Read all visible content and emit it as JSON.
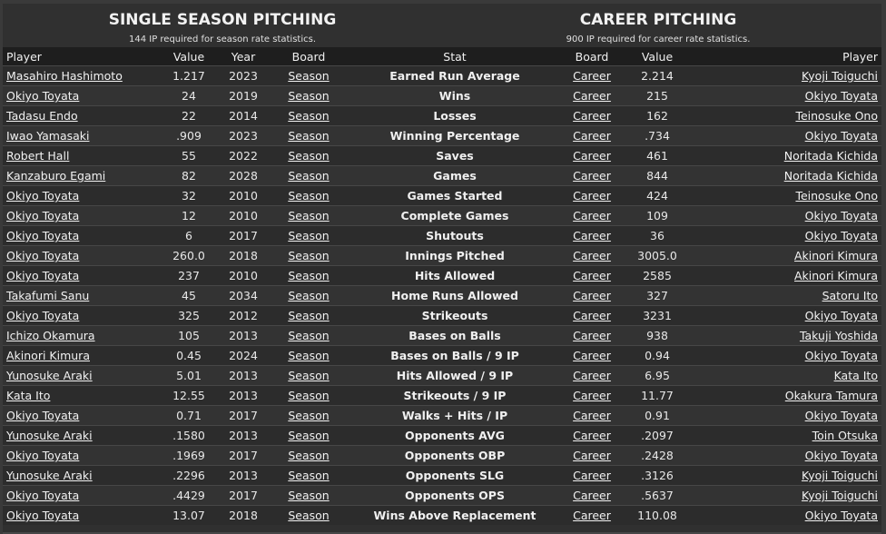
{
  "single": {
    "title": "SINGLE SEASON PITCHING",
    "note": "144 IP required for season rate statistics."
  },
  "career": {
    "title": "CAREER PITCHING",
    "note": "900 IP required for career rate statistics."
  },
  "columns": {
    "player_left": "Player",
    "value_left": "Value",
    "year": "Year",
    "board_left": "Board",
    "stat": "Stat",
    "board_right": "Board",
    "value_right": "Value",
    "player_right": "Player"
  },
  "rows": [
    {
      "sp": "Masahiro Hashimoto",
      "sv": "1.217",
      "yr": "2023",
      "sb": "Season",
      "stat": "Earned Run Average",
      "cb": "Career",
      "cv": "2.214",
      "cp": "Kyoji Toiguchi"
    },
    {
      "sp": "Okiyo Toyata",
      "sv": "24",
      "yr": "2019",
      "sb": "Season",
      "stat": "Wins",
      "cb": "Career",
      "cv": "215",
      "cp": "Okiyo Toyata"
    },
    {
      "sp": "Tadasu Endo",
      "sv": "22",
      "yr": "2014",
      "sb": "Season",
      "stat": "Losses",
      "cb": "Career",
      "cv": "162",
      "cp": "Teinosuke Ono"
    },
    {
      "sp": "Iwao Yamasaki",
      "sv": ".909",
      "yr": "2023",
      "sb": "Season",
      "stat": "Winning Percentage",
      "cb": "Career",
      "cv": ".734",
      "cp": "Okiyo Toyata"
    },
    {
      "sp": "Robert Hall",
      "sv": "55",
      "yr": "2022",
      "sb": "Season",
      "stat": "Saves",
      "cb": "Career",
      "cv": "461",
      "cp": "Noritada Kichida"
    },
    {
      "sp": "Kanzaburo Egami",
      "sv": "82",
      "yr": "2028",
      "sb": "Season",
      "stat": "Games",
      "cb": "Career",
      "cv": "844",
      "cp": "Noritada Kichida"
    },
    {
      "sp": "Okiyo Toyata",
      "sv": "32",
      "yr": "2010",
      "sb": "Season",
      "stat": "Games Started",
      "cb": "Career",
      "cv": "424",
      "cp": "Teinosuke Ono"
    },
    {
      "sp": "Okiyo Toyata",
      "sv": "12",
      "yr": "2010",
      "sb": "Season",
      "stat": "Complete Games",
      "cb": "Career",
      "cv": "109",
      "cp": "Okiyo Toyata"
    },
    {
      "sp": "Okiyo Toyata",
      "sv": "6",
      "yr": "2017",
      "sb": "Season",
      "stat": "Shutouts",
      "cb": "Career",
      "cv": "36",
      "cp": "Okiyo Toyata"
    },
    {
      "sp": "Okiyo Toyata",
      "sv": "260.0",
      "yr": "2018",
      "sb": "Season",
      "stat": "Innings Pitched",
      "cb": "Career",
      "cv": "3005.0",
      "cp": "Akinori Kimura"
    },
    {
      "sp": "Okiyo Toyata",
      "sv": "237",
      "yr": "2010",
      "sb": "Season",
      "stat": "Hits Allowed",
      "cb": "Career",
      "cv": "2585",
      "cp": "Akinori Kimura"
    },
    {
      "sp": "Takafumi Sanu",
      "sv": "45",
      "yr": "2034",
      "sb": "Season",
      "stat": "Home Runs Allowed",
      "cb": "Career",
      "cv": "327",
      "cp": "Satoru Ito"
    },
    {
      "sp": "Okiyo Toyata",
      "sv": "325",
      "yr": "2012",
      "sb": "Season",
      "stat": "Strikeouts",
      "cb": "Career",
      "cv": "3231",
      "cp": "Okiyo Toyata"
    },
    {
      "sp": "Ichizo Okamura",
      "sv": "105",
      "yr": "2013",
      "sb": "Season",
      "stat": "Bases on Balls",
      "cb": "Career",
      "cv": "938",
      "cp": "Takuji Yoshida"
    },
    {
      "sp": "Akinori Kimura",
      "sv": "0.45",
      "yr": "2024",
      "sb": "Season",
      "stat": "Bases on Balls / 9 IP",
      "cb": "Career",
      "cv": "0.94",
      "cp": "Okiyo Toyata"
    },
    {
      "sp": "Yunosuke Araki",
      "sv": "5.01",
      "yr": "2013",
      "sb": "Season",
      "stat": "Hits Allowed / 9 IP",
      "cb": "Career",
      "cv": "6.95",
      "cp": "Kata Ito"
    },
    {
      "sp": "Kata Ito",
      "sv": "12.55",
      "yr": "2013",
      "sb": "Season",
      "stat": "Strikeouts / 9 IP",
      "cb": "Career",
      "cv": "11.77",
      "cp": "Okakura Tamura"
    },
    {
      "sp": "Okiyo Toyata",
      "sv": "0.71",
      "yr": "2017",
      "sb": "Season",
      "stat": "Walks + Hits / IP",
      "cb": "Career",
      "cv": "0.91",
      "cp": "Okiyo Toyata"
    },
    {
      "sp": "Yunosuke Araki",
      "sv": ".1580",
      "yr": "2013",
      "sb": "Season",
      "stat": "Opponents AVG",
      "cb": "Career",
      "cv": ".2097",
      "cp": "Toin Otsuka"
    },
    {
      "sp": "Okiyo Toyata",
      "sv": ".1969",
      "yr": "2017",
      "sb": "Season",
      "stat": "Opponents OBP",
      "cb": "Career",
      "cv": ".2428",
      "cp": "Okiyo Toyata"
    },
    {
      "sp": "Yunosuke Araki",
      "sv": ".2296",
      "yr": "2013",
      "sb": "Season",
      "stat": "Opponents SLG",
      "cb": "Career",
      "cv": ".3126",
      "cp": "Kyoji Toiguchi"
    },
    {
      "sp": "Okiyo Toyata",
      "sv": ".4429",
      "yr": "2017",
      "sb": "Season",
      "stat": "Opponents OPS",
      "cb": "Career",
      "cv": ".5637",
      "cp": "Kyoji Toiguchi"
    },
    {
      "sp": "Okiyo Toyata",
      "sv": "13.07",
      "yr": "2018",
      "sb": "Season",
      "stat": "Wins Above Replacement",
      "cb": "Career",
      "cv": "110.08",
      "cp": "Okiyo Toyata"
    }
  ]
}
